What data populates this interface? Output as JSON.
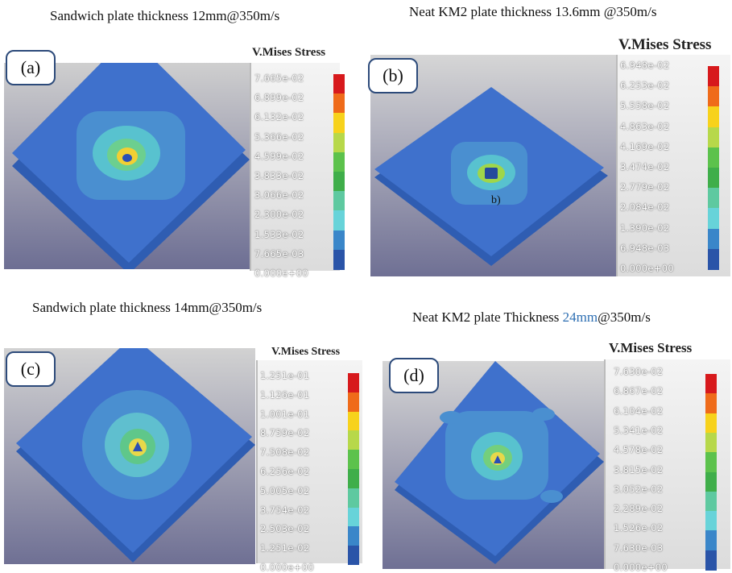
{
  "panels": [
    {
      "caption": "Sandwich plate thickness 12mm@350m/s",
      "tag": "(a)",
      "legend_title": "V.Mises Stress",
      "labels": [
        "7.665e-02",
        "6.899e-02",
        "6.132e-02",
        "5.366e-02",
        "4.599e-02",
        "3.833e-02",
        "3.066e-02",
        "2.300e-02",
        "1.533e-02",
        "7.665e-03",
        "0.000e+00"
      ]
    },
    {
      "caption": "Neat KM2 plate thickness 13.6mm @350m/s",
      "tag": "(b)",
      "legend_title": "V.Mises Stress",
      "labels": [
        "6.948e-02",
        "6.253e-02",
        "5.558e-02",
        "4.863e-02",
        "4.169e-02",
        "3.474e-02",
        "2.779e-02",
        "2.084e-02",
        "1.390e-02",
        "6.948e-03",
        "0.000e+00"
      ],
      "annotation": "b)"
    },
    {
      "caption": "Sandwich plate thickness    14mm@350m/s",
      "tag": "(c)",
      "legend_title": "V.Mises Stress",
      "labels": [
        "1.251e-01",
        "1.126e-01",
        "1.001e-01",
        "8.759e-02",
        "7.508e-02",
        "6.256e-02",
        "5.005e-02",
        "3.754e-02",
        "2.503e-02",
        "1.251e-02",
        "0.000e+00"
      ]
    },
    {
      "caption_prefix": "Neat KM2 plate Thickness  ",
      "caption_accent": "24mm",
      "caption_suffix": "@350m/s",
      "tag": "(d)",
      "legend_title": "V.Mises Stress",
      "labels": [
        "7.630e-02",
        "6.867e-02",
        "6.104e-02",
        "5.341e-02",
        "4.578e-02",
        "3.815e-02",
        "3.052e-02",
        "2.289e-02",
        "1.526e-02",
        "7.630e-03",
        "0.000e+00"
      ]
    }
  ],
  "colors": {
    "scale": [
      "#d7191c",
      "#ef6b1a",
      "#f7d21c",
      "#b7d84a",
      "#5cc24c",
      "#3fae4a",
      "#5ec9a0",
      "#67d3d9",
      "#3a86c9",
      "#2a54a8",
      "#1f3c9e"
    ],
    "plate": "#3d6fc9",
    "background_top": "#c9c9c9",
    "background_bottom": "#6f6f92"
  }
}
